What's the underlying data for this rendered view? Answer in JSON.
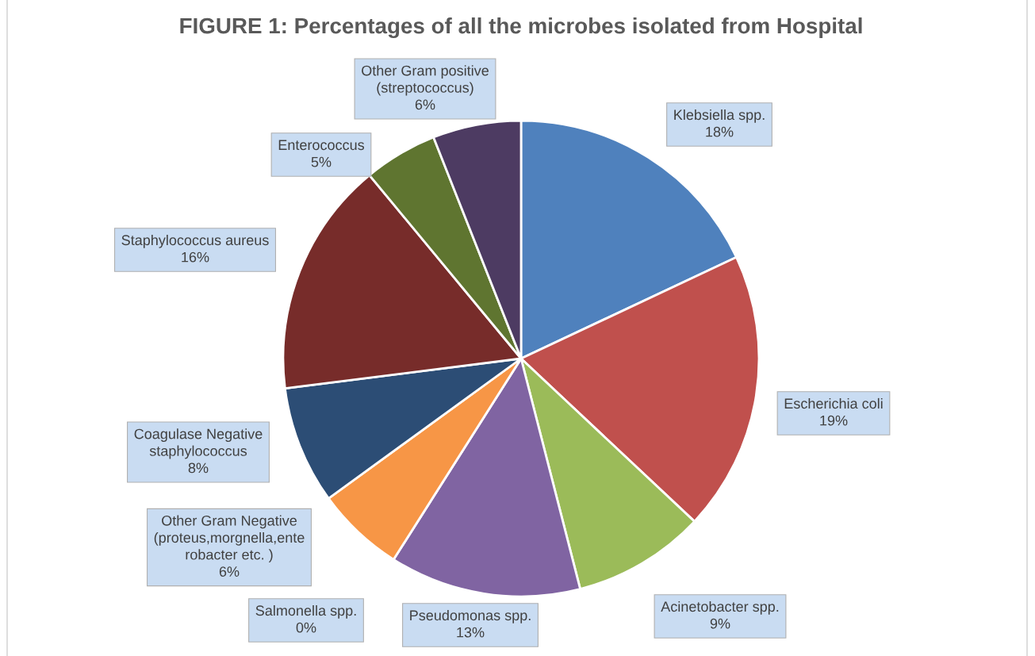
{
  "chart_data": {
    "type": "pie",
    "title": "FIGURE 1: Percentages of all the microbes isolated from Hospital",
    "categories": [
      "Klebsiella spp.",
      "Escherichia coli",
      "Acinetobacter spp.",
      "Pseudomonas spp.",
      "Salmonella spp.",
      "Other Gram Negative\n(proteus,morgnella,ente\nrobacter etc. )",
      "Coagulase Negative\nstaphylococcus",
      "Staphylococcus aureus",
      "Enterococcus",
      "Other Gram positive\n(streptococcus)"
    ],
    "values": [
      18,
      19,
      9,
      13,
      0,
      6,
      8,
      16,
      5,
      6
    ],
    "value_labels": [
      "18%",
      "19%",
      "9%",
      "13%",
      "0%",
      "6%",
      "8%",
      "16%",
      "5%",
      "6%"
    ],
    "colors": [
      "#4f81bd",
      "#c0504d",
      "#9bbb59",
      "#8064a2",
      "#4bacc6",
      "#f79646",
      "#2c4d75",
      "#772c2a",
      "#5f7530",
      "#4d3b62"
    ],
    "legend": false
  }
}
